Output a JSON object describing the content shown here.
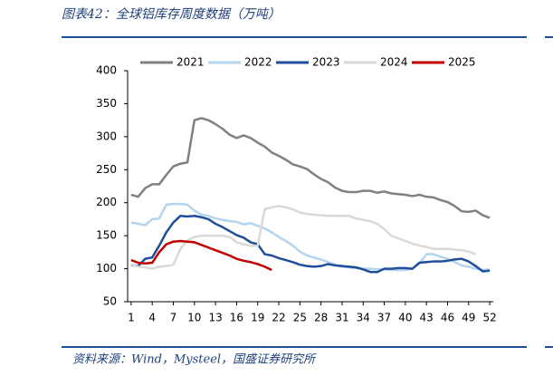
{
  "chart_data": {
    "type": "line",
    "title": "图表42：全球铝库存周度数据（万吨）",
    "source": "资料来源：Wind，Mysteel，国盛证券研究所",
    "x": [
      1,
      2,
      3,
      4,
      5,
      6,
      7,
      8,
      9,
      10,
      11,
      12,
      13,
      14,
      15,
      16,
      17,
      18,
      19,
      20,
      21,
      22,
      23,
      24,
      25,
      26,
      27,
      28,
      29,
      30,
      31,
      32,
      33,
      34,
      35,
      36,
      37,
      38,
      39,
      40,
      41,
      42,
      43,
      44,
      45,
      46,
      47,
      48,
      49,
      50,
      51,
      52
    ],
    "xlim": [
      0.5,
      52.5
    ],
    "xticks": [
      1,
      4,
      7,
      10,
      13,
      16,
      19,
      22,
      25,
      28,
      31,
      34,
      37,
      40,
      43,
      46,
      49,
      52
    ],
    "ylim": [
      50,
      400
    ],
    "yticks": [
      50,
      100,
      150,
      200,
      250,
      300,
      350,
      400
    ],
    "legend": "top",
    "series": [
      {
        "name": "2021",
        "color": "#808080",
        "values": [
          212,
          209,
          222,
          228,
          228,
          242,
          255,
          259,
          261,
          325,
          328,
          325,
          319,
          312,
          303,
          298,
          302,
          298,
          291,
          285,
          276,
          271,
          265,
          258,
          255,
          251,
          243,
          236,
          231,
          223,
          218,
          216,
          216,
          218,
          218,
          215,
          217,
          214,
          213,
          212,
          210,
          212,
          209,
          208,
          204,
          201,
          195,
          187,
          186,
          188,
          181,
          177
        ]
      },
      {
        "name": "2022",
        "color": "#b4d4f0",
        "values": [
          170,
          168,
          166,
          175,
          176,
          197,
          198,
          198,
          197,
          188,
          182,
          180,
          176,
          174,
          172,
          171,
          167,
          169,
          165,
          161,
          155,
          148,
          142,
          135,
          126,
          120,
          117,
          114,
          110,
          106,
          103,
          102,
          101,
          100,
          100,
          99,
          99,
          98,
          98,
          98,
          100,
          108,
          122,
          122,
          118,
          115,
          110,
          105,
          103,
          100,
          98,
          99
        ]
      },
      {
        "name": "2023",
        "color": "#1f4e9a",
        "values": [
          106,
          104,
          115,
          117,
          135,
          155,
          170,
          180,
          179,
          180,
          178,
          175,
          168,
          163,
          157,
          151,
          147,
          140,
          137,
          122,
          120,
          116,
          113,
          110,
          106,
          104,
          103,
          104,
          107,
          105,
          104,
          103,
          102,
          99,
          95,
          95,
          100,
          100,
          101,
          101,
          100,
          109,
          110,
          111,
          111,
          112,
          114,
          115,
          111,
          104,
          96,
          97
        ]
      },
      {
        "name": "2024",
        "color": "#d9d9d9",
        "values": [
          107,
          103,
          102,
          100,
          103,
          104,
          106,
          130,
          143,
          148,
          150,
          150,
          150,
          150,
          148,
          140,
          137,
          135,
          135,
          190,
          193,
          195,
          193,
          190,
          185,
          183,
          182,
          181,
          180,
          180,
          180,
          180,
          176,
          174,
          172,
          168,
          160,
          150,
          146,
          142,
          138,
          135,
          133,
          130,
          130,
          130,
          129,
          128,
          126,
          122,
          null,
          null
        ]
      },
      {
        "name": "2025",
        "color": "#c00000",
        "values": [
          113,
          109,
          108,
          109,
          125,
          137,
          141,
          142,
          141,
          140,
          136,
          132,
          128,
          124,
          120,
          115,
          112,
          110,
          107,
          103,
          98,
          null,
          null,
          null,
          null,
          null,
          null,
          null,
          null,
          null,
          null,
          null,
          null,
          null,
          null,
          null,
          null,
          null,
          null,
          null,
          null,
          null,
          null,
          null,
          null,
          null,
          null,
          null,
          null,
          null,
          null,
          null
        ]
      }
    ]
  }
}
